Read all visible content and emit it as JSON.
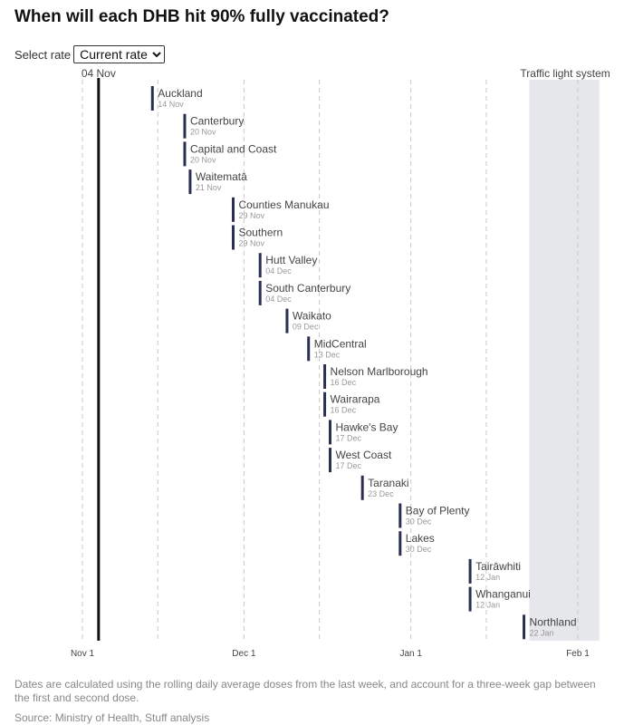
{
  "title": "When will each DHB hit 90% fully vaccinated?",
  "selector": {
    "label": "Select rate",
    "selected": "Current rate"
  },
  "chart_data": {
    "type": "timeline",
    "title": "When will each DHB hit 90% fully vaccinated?",
    "x_axis": {
      "type": "date",
      "range": [
        "2021-11-01",
        "2022-02-05"
      ],
      "ticks": [
        {
          "date": "2021-11-01",
          "label": "Nov 1"
        },
        {
          "date": "2021-12-01",
          "label": "Dec 1"
        },
        {
          "date": "2022-01-01",
          "label": "Jan 1"
        },
        {
          "date": "2022-02-01",
          "label": "Feb 1"
        }
      ],
      "grid": true
    },
    "minor_grid": [
      "2021-11-15",
      "2021-12-15",
      "2022-01-15"
    ],
    "today_marker": {
      "date": "2021-11-04",
      "label": "04 Nov"
    },
    "shaded_region": {
      "start": "2022-01-23",
      "end": "2022-02-05",
      "label": "Traffic light system",
      "color": "#e6e7ea"
    },
    "bar_color": "#2b3052",
    "points": [
      {
        "name": "Auckland",
        "date": "2021-11-14",
        "label": "14 Nov"
      },
      {
        "name": "Canterbury",
        "date": "2021-11-20",
        "label": "20 Nov"
      },
      {
        "name": "Capital and Coast",
        "date": "2021-11-20",
        "label": "20 Nov"
      },
      {
        "name": "Waitematā",
        "date": "2021-11-21",
        "label": "21 Nov"
      },
      {
        "name": "Counties Manukau",
        "date": "2021-11-29",
        "label": "29 Nov"
      },
      {
        "name": "Southern",
        "date": "2021-11-29",
        "label": "29 Nov"
      },
      {
        "name": "Hutt Valley",
        "date": "2021-12-04",
        "label": "04 Dec"
      },
      {
        "name": "South Canterbury",
        "date": "2021-12-04",
        "label": "04 Dec"
      },
      {
        "name": "Waikato",
        "date": "2021-12-09",
        "label": "09 Dec"
      },
      {
        "name": "MidCentral",
        "date": "2021-12-13",
        "label": "13 Dec"
      },
      {
        "name": "Nelson Marlborough",
        "date": "2021-12-16",
        "label": "16 Dec"
      },
      {
        "name": "Wairarapa",
        "date": "2021-12-16",
        "label": "16 Dec"
      },
      {
        "name": "Hawke's Bay",
        "date": "2021-12-17",
        "label": "17 Dec"
      },
      {
        "name": "West Coast",
        "date": "2021-12-17",
        "label": "17 Dec"
      },
      {
        "name": "Taranaki",
        "date": "2021-12-23",
        "label": "23 Dec"
      },
      {
        "name": "Bay of Plenty",
        "date": "2021-12-30",
        "label": "30 Dec"
      },
      {
        "name": "Lakes",
        "date": "2021-12-30",
        "label": "30 Dec"
      },
      {
        "name": "Tairāwhiti",
        "date": "2022-01-12",
        "label": "12 Jan"
      },
      {
        "name": "Whanganui",
        "date": "2022-01-12",
        "label": "12 Jan"
      },
      {
        "name": "Northland",
        "date": "2022-01-22",
        "label": "22 Jan"
      }
    ]
  },
  "note": "Dates are calculated using the rolling daily average doses from the last week, and account for a three-week gap between the first and second dose.",
  "source": "Source: Ministry of Health, Stuff analysis"
}
